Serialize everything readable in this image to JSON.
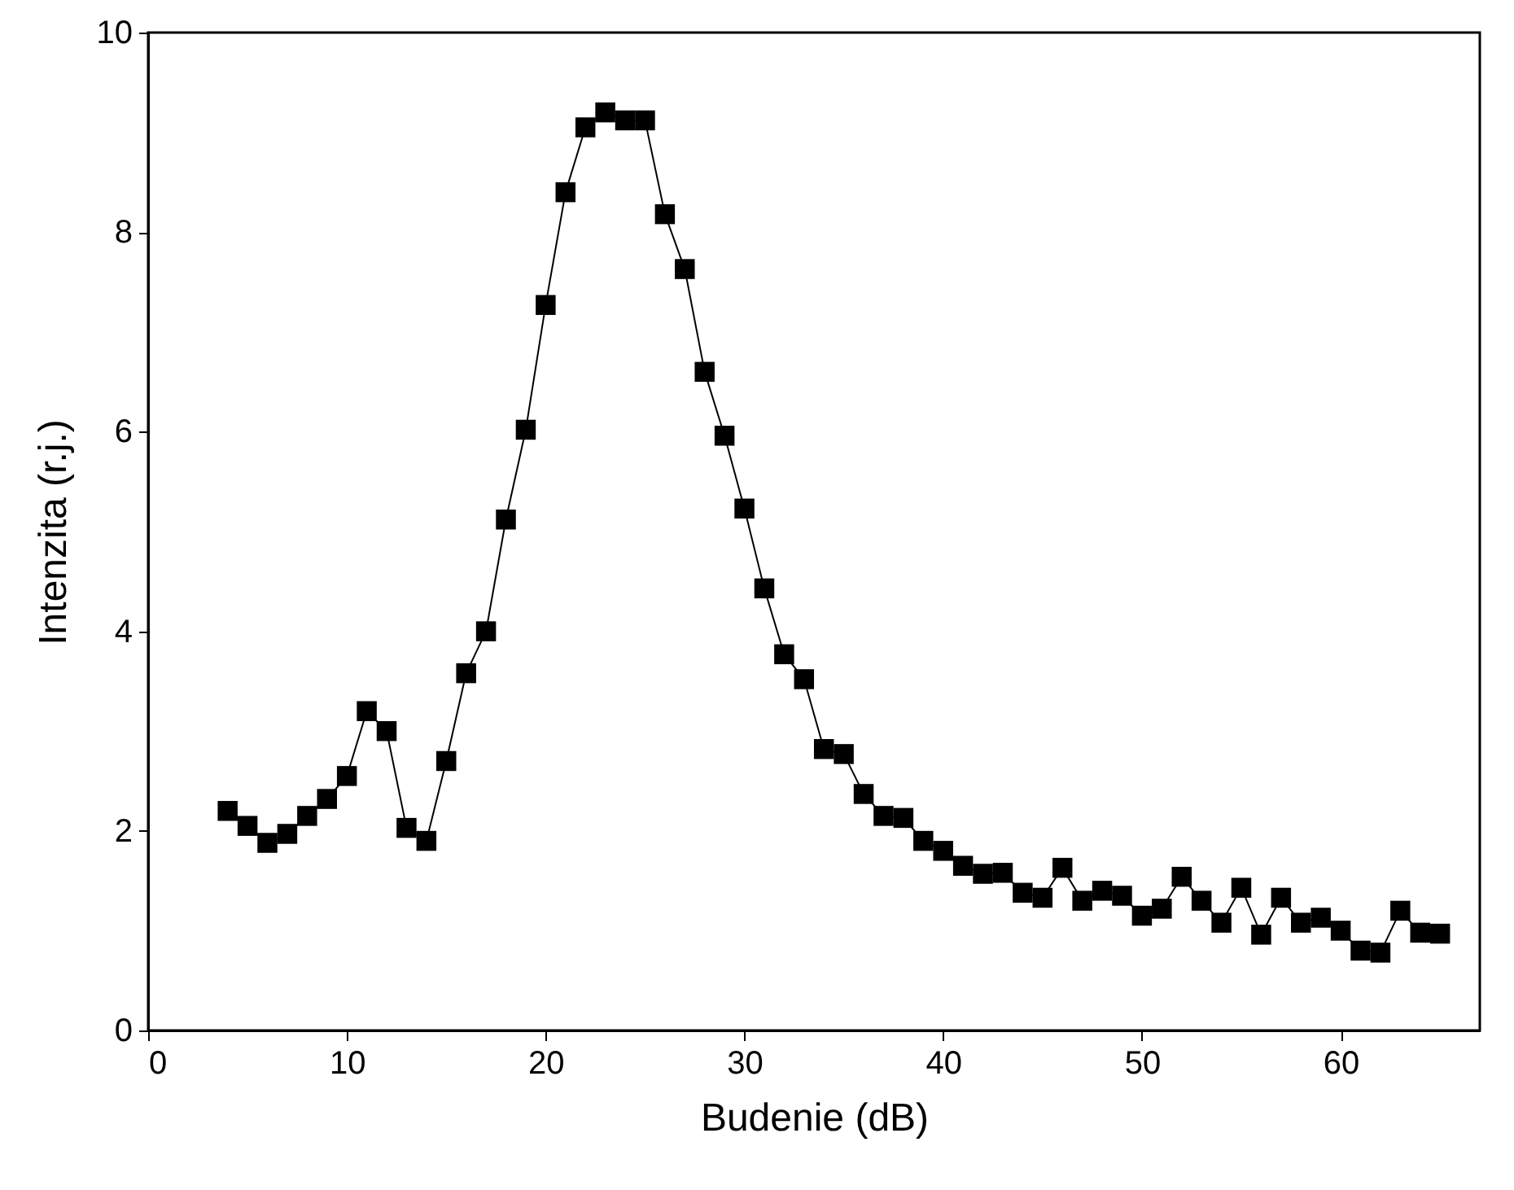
{
  "chart_data": {
    "type": "line",
    "xlabel": "Budenie (dB)",
    "ylabel": "Intenzita (r.j.)",
    "x": [
      4,
      5,
      6,
      7,
      8,
      9,
      10,
      11,
      12,
      13,
      14,
      15,
      16,
      17,
      18,
      19,
      20,
      21,
      22,
      23,
      24,
      25,
      26,
      27,
      28,
      29,
      30,
      31,
      32,
      33,
      34,
      35,
      36,
      37,
      38,
      39,
      40,
      41,
      42,
      43,
      44,
      45,
      46,
      47,
      48,
      49,
      50,
      51,
      52,
      53,
      54,
      55,
      56,
      57,
      58,
      59,
      60,
      61,
      62,
      63,
      64,
      65
    ],
    "series": [
      {
        "color": "#000000",
        "values": [
          2.2,
          2.05,
          1.88,
          1.97,
          2.15,
          2.32,
          2.55,
          3.2,
          3.0,
          2.03,
          1.9,
          2.7,
          3.58,
          4.0,
          5.12,
          6.02,
          7.27,
          8.4,
          9.05,
          9.2,
          9.12,
          9.12,
          8.18,
          7.63,
          6.6,
          5.96,
          5.23,
          4.43,
          3.77,
          3.52,
          2.82,
          2.77,
          2.37,
          2.15,
          2.13,
          1.9,
          1.8,
          1.65,
          1.57,
          1.58,
          1.38,
          1.33,
          1.63,
          1.3,
          1.4,
          1.35,
          1.15,
          1.22,
          1.54,
          1.3,
          1.08,
          1.43,
          0.96,
          1.33,
          1.08,
          1.13,
          1.0,
          0.8,
          0.78,
          1.2,
          0.98,
          0.97
        ]
      }
    ],
    "xlim": [
      0,
      67
    ],
    "xticks": [
      0,
      10,
      20,
      30,
      40,
      50,
      60
    ],
    "ylim": [
      0,
      10
    ],
    "yticks": [
      0,
      2,
      4,
      6,
      8,
      10
    ],
    "marker": "square",
    "line_style": "solid",
    "grid": false
  }
}
